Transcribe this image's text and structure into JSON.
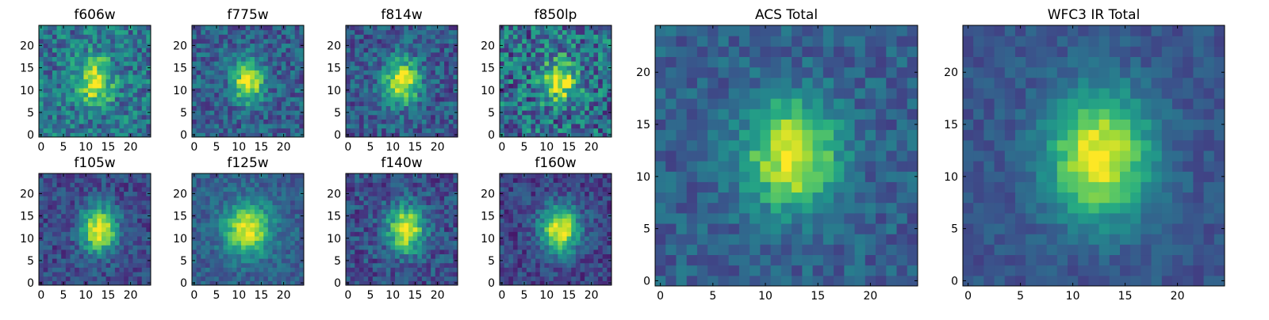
{
  "figure": {
    "layout": "two rows of four small panels on the left, two large panels on the right"
  },
  "colormap": {
    "name": "viridis",
    "stops": [
      "#440154",
      "#472f7d",
      "#3b528b",
      "#2c728e",
      "#21918c",
      "#28ae80",
      "#5ec962",
      "#addc30",
      "#fde725"
    ]
  },
  "chart_data": [
    {
      "type": "heatmap",
      "title": "f606w",
      "xticks": [
        "0",
        "5",
        "10",
        "15",
        "20"
      ],
      "yticks": [
        "0",
        "5",
        "10",
        "15",
        "20"
      ],
      "shape": [
        25,
        25
      ],
      "xlim": [
        0,
        24
      ],
      "ylim": [
        0,
        24
      ],
      "peak_center": [
        12,
        12
      ],
      "sigma": [
        2.6,
        3.8
      ],
      "noise": 0.22,
      "background": 0.38,
      "grid": false
    },
    {
      "type": "heatmap",
      "title": "f775w",
      "xticks": [
        "0",
        "5",
        "10",
        "15",
        "20"
      ],
      "yticks": [
        "0",
        "5",
        "10",
        "15",
        "20"
      ],
      "shape": [
        25,
        25
      ],
      "xlim": [
        0,
        24
      ],
      "ylim": [
        0,
        24
      ],
      "peak_center": [
        12,
        12
      ],
      "sigma": [
        2.4,
        3.2
      ],
      "noise": 0.18,
      "background": 0.3,
      "grid": false
    },
    {
      "type": "heatmap",
      "title": "f814w",
      "xticks": [
        "0",
        "5",
        "10",
        "15",
        "20"
      ],
      "yticks": [
        "0",
        "5",
        "10",
        "15",
        "20"
      ],
      "shape": [
        25,
        25
      ],
      "xlim": [
        0,
        24
      ],
      "ylim": [
        0,
        24
      ],
      "peak_center": [
        12,
        12
      ],
      "sigma": [
        2.8,
        3.4
      ],
      "noise": 0.18,
      "background": 0.28,
      "grid": false
    },
    {
      "type": "heatmap",
      "title": "f850lp",
      "xticks": [
        "0",
        "5",
        "10",
        "15",
        "20"
      ],
      "yticks": [
        "0",
        "5",
        "10",
        "15",
        "20"
      ],
      "shape": [
        25,
        25
      ],
      "xlim": [
        0,
        24
      ],
      "ylim": [
        0,
        24
      ],
      "peak_center": [
        13,
        12
      ],
      "sigma": [
        2.6,
        3.2
      ],
      "noise": 0.28,
      "background": 0.35,
      "grid": false
    },
    {
      "type": "heatmap",
      "title": "f105w",
      "xticks": [
        "0",
        "5",
        "10",
        "15",
        "20"
      ],
      "yticks": [
        "0",
        "5",
        "10",
        "15",
        "20"
      ],
      "shape": [
        25,
        25
      ],
      "xlim": [
        0,
        24
      ],
      "ylim": [
        0,
        24
      ],
      "peak_center": [
        13,
        12
      ],
      "sigma": [
        2.8,
        3.6
      ],
      "noise": 0.14,
      "background": 0.22,
      "grid": false
    },
    {
      "type": "heatmap",
      "title": "f125w",
      "xticks": [
        "0",
        "5",
        "10",
        "15",
        "20"
      ],
      "yticks": [
        "0",
        "5",
        "10",
        "15",
        "20"
      ],
      "shape": [
        25,
        25
      ],
      "xlim": [
        0,
        24
      ],
      "ylim": [
        0,
        24
      ],
      "peak_center": [
        12,
        12
      ],
      "sigma": [
        3.4,
        3.8
      ],
      "noise": 0.12,
      "background": 0.3,
      "grid": false
    },
    {
      "type": "heatmap",
      "title": "f140w",
      "xticks": [
        "0",
        "5",
        "10",
        "15",
        "20"
      ],
      "yticks": [
        "0",
        "5",
        "10",
        "15",
        "20"
      ],
      "shape": [
        25,
        25
      ],
      "xlim": [
        0,
        24
      ],
      "ylim": [
        0,
        24
      ],
      "peak_center": [
        13,
        12
      ],
      "sigma": [
        2.8,
        3.6
      ],
      "noise": 0.16,
      "background": 0.24,
      "grid": false
    },
    {
      "type": "heatmap",
      "title": "f160w",
      "xticks": [
        "0",
        "5",
        "10",
        "15",
        "20"
      ],
      "yticks": [
        "0",
        "5",
        "10",
        "15",
        "20"
      ],
      "shape": [
        25,
        25
      ],
      "xlim": [
        0,
        24
      ],
      "ylim": [
        0,
        24
      ],
      "peak_center": [
        13,
        12
      ],
      "sigma": [
        3.0,
        3.6
      ],
      "noise": 0.14,
      "background": 0.2,
      "grid": false
    },
    {
      "type": "heatmap",
      "title": "ACS Total",
      "xticks": [
        "0",
        "5",
        "10",
        "15",
        "20"
      ],
      "yticks": [
        "0",
        "5",
        "10",
        "15",
        "20"
      ],
      "shape": [
        25,
        25
      ],
      "xlim": [
        0,
        24
      ],
      "ylim": [
        0,
        24
      ],
      "peak_center": [
        12.5,
        12
      ],
      "sigma": [
        3.0,
        3.6
      ],
      "noise": 0.12,
      "background": 0.3,
      "grid": false
    },
    {
      "type": "heatmap",
      "title": "WFC3 IR Total",
      "xticks": [
        "0",
        "5",
        "10",
        "15",
        "20"
      ],
      "yticks": [
        "0",
        "5",
        "10",
        "15",
        "20"
      ],
      "shape": [
        25,
        25
      ],
      "xlim": [
        0,
        24
      ],
      "ylim": [
        0,
        24
      ],
      "peak_center": [
        12.5,
        12
      ],
      "sigma": [
        3.4,
        4.2
      ],
      "noise": 0.08,
      "background": 0.26,
      "grid": false
    }
  ]
}
